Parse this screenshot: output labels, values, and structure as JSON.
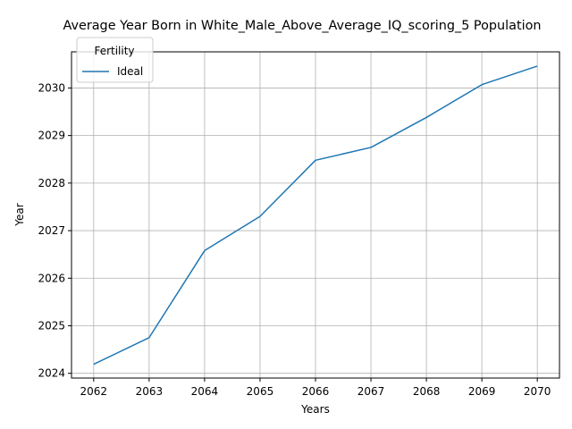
{
  "chart_data": {
    "type": "line",
    "title": "Average Year Born in White_Male_Above_Average_IQ_scoring_5 Population",
    "xlabel": "Years",
    "ylabel": "Year",
    "x": [
      2062,
      2063,
      2064,
      2065,
      2066,
      2067,
      2068,
      2069,
      2070
    ],
    "series": [
      {
        "name": "Ideal",
        "color": "#1f77b4",
        "values": [
          2024.19,
          2024.75,
          2026.58,
          2027.3,
          2028.48,
          2028.75,
          2029.38,
          2030.07,
          2030.46
        ]
      }
    ],
    "xlim": [
      2061.6,
      2070.4
    ],
    "ylim": [
      2023.9,
      2030.76
    ],
    "xticks": [
      2062,
      2063,
      2064,
      2065,
      2066,
      2067,
      2068,
      2069,
      2070
    ],
    "yticks": [
      2024,
      2025,
      2026,
      2027,
      2028,
      2029,
      2030
    ],
    "grid": true,
    "legend": {
      "title": "Fertility",
      "placement": "top-left"
    }
  }
}
